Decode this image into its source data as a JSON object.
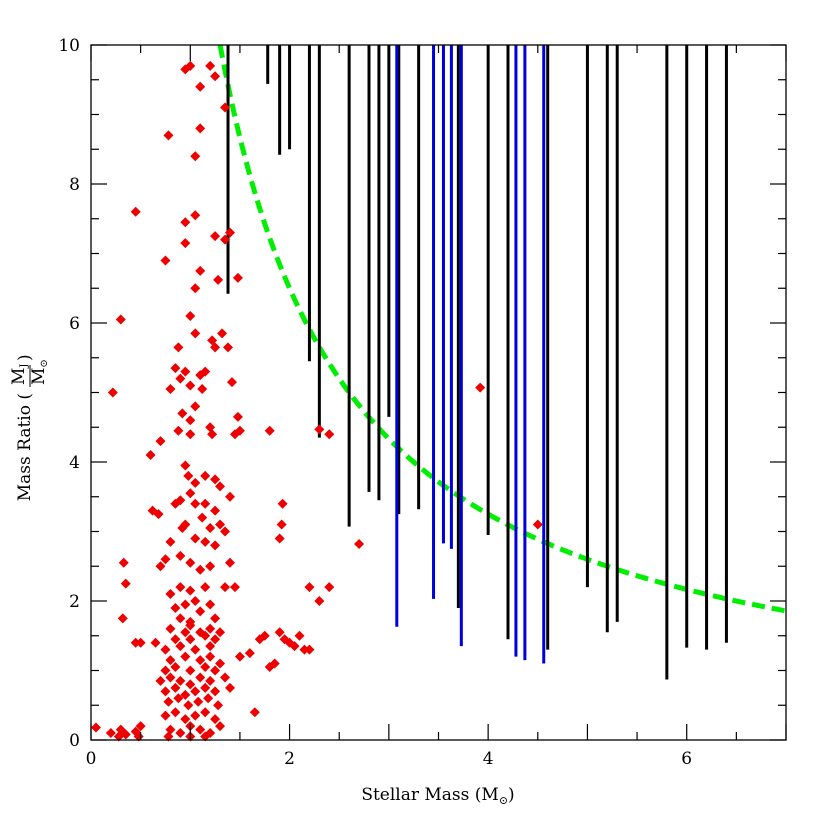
{
  "chart_data": {
    "type": "scatter",
    "title": "",
    "xlabel": "Stellar Mass (M",
    "xlabel_sub": "⊙",
    "xlabel_close": ")",
    "ylabel": "Mass Ratio (",
    "ylabel_num": "M",
    "ylabel_num_sub": "J",
    "ylabel_den": "M",
    "ylabel_den_sub": "⊙",
    "ylabel_close": ")",
    "xlim": [
      0,
      7
    ],
    "ylim": [
      0,
      10
    ],
    "xticks": [
      0,
      2,
      4,
      6
    ],
    "yticks": [
      0,
      2,
      4,
      6,
      8,
      10
    ],
    "grid": false,
    "colors": {
      "points": "#ee0000",
      "upper_limits_black": "#000000",
      "upper_limits_blue": "#0000dd",
      "curve": "#00ee00"
    },
    "series": [
      {
        "kind": "points",
        "color": "#ee0000",
        "points": [
          [
            0.05,
            0.18
          ],
          [
            0.2,
            0.1
          ],
          [
            0.28,
            0.05
          ],
          [
            0.3,
            0.15
          ],
          [
            0.35,
            0.08
          ],
          [
            0.45,
            0.12
          ],
          [
            0.48,
            0.05
          ],
          [
            0.5,
            0.2
          ],
          [
            0.22,
            5.0
          ],
          [
            0.3,
            6.05
          ],
          [
            0.32,
            1.75
          ],
          [
            0.33,
            2.55
          ],
          [
            0.35,
            2.25
          ],
          [
            0.45,
            1.4
          ],
          [
            0.5,
            1.4
          ],
          [
            0.45,
            7.6
          ],
          [
            0.75,
            6.9
          ],
          [
            0.78,
            8.7
          ],
          [
            0.6,
            4.1
          ],
          [
            0.7,
            4.3
          ],
          [
            0.62,
            3.3
          ],
          [
            0.68,
            3.25
          ],
          [
            0.7,
            2.5
          ],
          [
            0.65,
            1.4
          ],
          [
            0.95,
            9.65
          ],
          [
            1.0,
            9.7
          ],
          [
            1.1,
            9.4
          ],
          [
            1.2,
            9.7
          ],
          [
            1.25,
            9.55
          ],
          [
            1.35,
            9.1
          ],
          [
            1.1,
            8.8
          ],
          [
            1.05,
            8.4
          ],
          [
            0.95,
            7.45
          ],
          [
            1.05,
            7.55
          ],
          [
            0.95,
            7.15
          ],
          [
            1.25,
            7.25
          ],
          [
            1.35,
            7.2
          ],
          [
            1.4,
            7.3
          ],
          [
            1.1,
            6.75
          ],
          [
            1.28,
            6.62
          ],
          [
            1.48,
            6.65
          ],
          [
            1.05,
            6.5
          ],
          [
            1.0,
            6.1
          ],
          [
            1.05,
            5.85
          ],
          [
            1.22,
            5.75
          ],
          [
            1.25,
            5.65
          ],
          [
            1.32,
            5.85
          ],
          [
            1.38,
            5.65
          ],
          [
            0.88,
            5.65
          ],
          [
            0.85,
            5.35
          ],
          [
            0.95,
            5.3
          ],
          [
            0.9,
            5.2
          ],
          [
            0.8,
            5.05
          ],
          [
            1.0,
            5.1
          ],
          [
            1.1,
            5.25
          ],
          [
            1.15,
            5.3
          ],
          [
            1.12,
            5.05
          ],
          [
            0.92,
            4.7
          ],
          [
            1.0,
            4.6
          ],
          [
            1.05,
            4.8
          ],
          [
            1.42,
            5.15
          ],
          [
            1.48,
            4.65
          ],
          [
            1.2,
            4.5
          ],
          [
            0.88,
            4.45
          ],
          [
            1.0,
            4.4
          ],
          [
            1.22,
            4.4
          ],
          [
            1.45,
            4.4
          ],
          [
            0.95,
            3.95
          ],
          [
            0.98,
            3.8
          ],
          [
            1.0,
            3.55
          ],
          [
            1.05,
            3.7
          ],
          [
            1.15,
            3.8
          ],
          [
            1.25,
            3.75
          ],
          [
            1.3,
            3.65
          ],
          [
            1.5,
            4.45
          ],
          [
            0.85,
            3.4
          ],
          [
            0.9,
            3.45
          ],
          [
            1.05,
            3.4
          ],
          [
            1.15,
            3.4
          ],
          [
            1.25,
            3.3
          ],
          [
            1.4,
            3.5
          ],
          [
            0.92,
            3.05
          ],
          [
            0.95,
            3.1
          ],
          [
            1.12,
            3.2
          ],
          [
            1.2,
            3.05
          ],
          [
            1.3,
            3.1
          ],
          [
            1.35,
            3.0
          ],
          [
            0.8,
            2.85
          ],
          [
            1.05,
            2.9
          ],
          [
            1.15,
            2.85
          ],
          [
            1.25,
            2.8
          ],
          [
            0.75,
            2.6
          ],
          [
            0.9,
            2.65
          ],
          [
            1.0,
            2.55
          ],
          [
            1.1,
            2.45
          ],
          [
            1.2,
            2.5
          ],
          [
            1.4,
            2.55
          ],
          [
            1.35,
            2.2
          ],
          [
            1.45,
            2.2
          ],
          [
            0.8,
            2.1
          ],
          [
            0.9,
            2.2
          ],
          [
            1.0,
            2.15
          ],
          [
            1.15,
            2.2
          ],
          [
            0.85,
            1.9
          ],
          [
            0.95,
            1.95
          ],
          [
            1.05,
            2.0
          ],
          [
            1.2,
            1.95
          ],
          [
            0.9,
            1.75
          ],
          [
            1.0,
            1.7
          ],
          [
            1.1,
            1.85
          ],
          [
            1.25,
            1.75
          ],
          [
            0.8,
            1.6
          ],
          [
            0.95,
            1.55
          ],
          [
            1.0,
            1.65
          ],
          [
            1.1,
            1.55
          ],
          [
            1.2,
            1.6
          ],
          [
            1.3,
            1.55
          ],
          [
            0.85,
            1.45
          ],
          [
            1.0,
            1.45
          ],
          [
            1.15,
            1.5
          ],
          [
            1.25,
            1.45
          ],
          [
            0.75,
            1.3
          ],
          [
            0.9,
            1.35
          ],
          [
            1.05,
            1.3
          ],
          [
            1.2,
            1.35
          ],
          [
            0.8,
            1.15
          ],
          [
            0.95,
            1.2
          ],
          [
            1.1,
            1.15
          ],
          [
            1.2,
            1.2
          ],
          [
            1.3,
            1.1
          ],
          [
            0.75,
            1.0
          ],
          [
            0.85,
            1.05
          ],
          [
            1.0,
            1.0
          ],
          [
            1.15,
            1.05
          ],
          [
            1.25,
            1.0
          ],
          [
            0.7,
            0.85
          ],
          [
            0.8,
            0.9
          ],
          [
            0.9,
            0.85
          ],
          [
            1.0,
            0.8
          ],
          [
            1.1,
            0.9
          ],
          [
            1.2,
            0.85
          ],
          [
            1.35,
            0.9
          ],
          [
            0.75,
            0.7
          ],
          [
            0.85,
            0.75
          ],
          [
            0.95,
            0.65
          ],
          [
            1.05,
            0.7
          ],
          [
            1.15,
            0.75
          ],
          [
            1.25,
            0.7
          ],
          [
            1.4,
            0.75
          ],
          [
            0.78,
            0.55
          ],
          [
            0.88,
            0.6
          ],
          [
            0.98,
            0.5
          ],
          [
            1.08,
            0.55
          ],
          [
            1.18,
            0.6
          ],
          [
            1.28,
            0.5
          ],
          [
            0.75,
            0.35
          ],
          [
            0.85,
            0.4
          ],
          [
            0.95,
            0.3
          ],
          [
            1.05,
            0.35
          ],
          [
            1.15,
            0.4
          ],
          [
            1.25,
            0.3
          ],
          [
            0.8,
            0.15
          ],
          [
            0.9,
            0.1
          ],
          [
            1.0,
            0.2
          ],
          [
            1.1,
            0.15
          ],
          [
            1.2,
            0.1
          ],
          [
            1.3,
            0.2
          ],
          [
            0.78,
            0.05
          ],
          [
            1.0,
            0.05
          ],
          [
            1.15,
            0.05
          ],
          [
            1.5,
            1.2
          ],
          [
            1.6,
            1.25
          ],
          [
            1.7,
            1.45
          ],
          [
            1.75,
            1.5
          ],
          [
            1.8,
            1.05
          ],
          [
            1.85,
            1.1
          ],
          [
            1.9,
            1.55
          ],
          [
            1.95,
            1.45
          ],
          [
            2.0,
            1.4
          ],
          [
            2.05,
            1.35
          ],
          [
            2.1,
            1.5
          ],
          [
            2.15,
            1.3
          ],
          [
            2.2,
            1.3
          ],
          [
            1.65,
            0.4
          ],
          [
            1.9,
            2.9
          ],
          [
            1.92,
            3.1
          ],
          [
            1.93,
            3.4
          ],
          [
            1.8,
            4.45
          ],
          [
            2.2,
            2.2
          ],
          [
            2.3,
            2.0
          ],
          [
            2.4,
            2.2
          ],
          [
            2.3,
            4.47
          ],
          [
            2.4,
            4.4
          ],
          [
            2.7,
            2.82
          ],
          [
            3.92,
            5.07
          ],
          [
            4.5,
            3.1
          ]
        ]
      },
      {
        "kind": "upper_limits",
        "color": "#000000",
        "x": [
          1.38,
          1.78,
          1.9,
          2.0,
          2.2,
          2.3,
          2.6,
          2.8,
          2.9,
          3.0,
          3.1,
          3.3,
          3.7,
          4.0,
          4.2,
          4.6,
          5.0,
          5.2,
          5.3,
          5.8,
          6.0,
          6.2,
          6.4
        ],
        "lower": [
          6.42,
          9.44,
          8.42,
          8.5,
          5.45,
          4.35,
          3.07,
          3.57,
          3.45,
          4.65,
          3.25,
          3.32,
          1.9,
          2.95,
          1.45,
          1.3,
          2.2,
          1.55,
          1.7,
          0.87,
          1.33,
          1.3,
          1.4
        ],
        "upper": [
          10,
          10,
          10,
          10,
          10,
          10,
          10,
          10,
          10,
          10,
          10,
          10,
          10,
          10,
          10,
          10,
          10,
          10,
          10,
          10,
          10,
          10,
          10
        ]
      },
      {
        "kind": "upper_limits",
        "color": "#0000dd",
        "x": [
          3.08,
          3.45,
          3.55,
          3.63,
          3.73,
          4.28,
          4.37,
          4.56
        ],
        "lower": [
          1.63,
          2.03,
          2.83,
          2.75,
          1.35,
          1.2,
          1.15,
          1.1
        ],
        "upper": [
          10,
          10,
          10,
          10,
          10,
          10,
          10,
          10
        ]
      },
      {
        "kind": "curve",
        "color": "#00ee00",
        "equation_constant": 13,
        "x_range": [
          1.3,
          7.0
        ]
      }
    ]
  }
}
